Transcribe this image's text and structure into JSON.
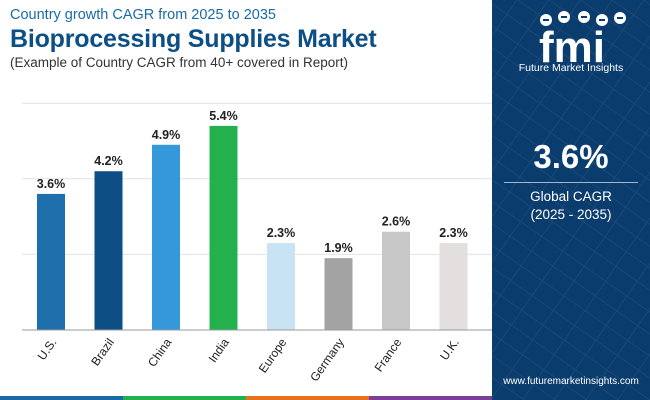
{
  "header": {
    "subtitle": "Country growth CAGR from 2025 to 2035",
    "title": "Bioprocessing Supplies Market",
    "note": "(Example of Country CAGR from 40+ covered in Report)"
  },
  "sidebar": {
    "logo_text": "fmi",
    "logo_subtitle": "Future Market Insights",
    "cagr_value": "3.6%",
    "cagr_label": "Global CAGR",
    "cagr_period": "(2025 - 2035)",
    "website": "www.futuremarketinsights.com",
    "background_color": "#0b3c6e"
  },
  "chart_data": {
    "type": "bar",
    "title": "Bioprocessing Supplies Market",
    "categories": [
      "U.S.",
      "Brazil",
      "China",
      "India",
      "Europe",
      "Germany",
      "France",
      "U.K."
    ],
    "values": [
      3.6,
      4.2,
      4.9,
      5.4,
      2.3,
      1.9,
      2.6,
      2.3
    ],
    "value_labels": [
      "3.6%",
      "4.2%",
      "4.9%",
      "5.4%",
      "2.3%",
      "1.9%",
      "2.6%",
      "2.3%"
    ],
    "colors": [
      "#1f6fad",
      "#0d4f85",
      "#3498db",
      "#22b14c",
      "#c7e3f4",
      "#a3a3a3",
      "#c8c8c8",
      "#e3dfdf"
    ],
    "unit": "%",
    "xlabel": "",
    "ylabel": "",
    "ylim": [
      0,
      6
    ],
    "grid": true,
    "legend": "none"
  },
  "bottom_bar_colors": [
    "#1b6aa6",
    "#22b14c",
    "#e8711d",
    "#7b3f98"
  ]
}
